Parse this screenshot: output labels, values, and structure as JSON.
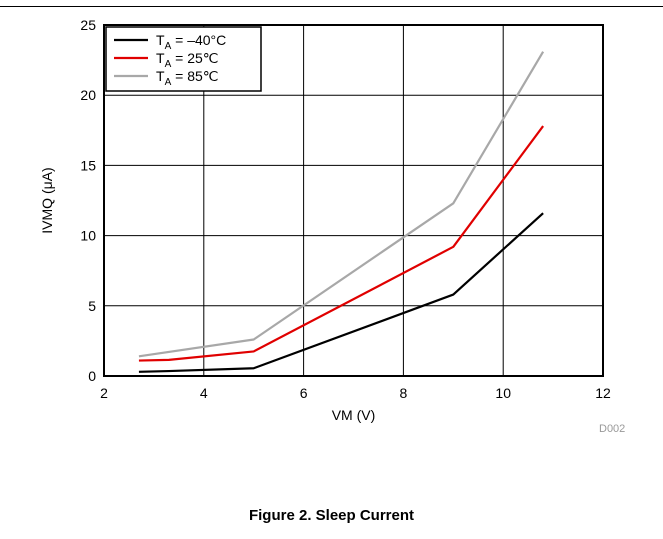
{
  "caption": "Figure 2. Sleep Current",
  "chart_data": {
    "type": "line",
    "xlabel": "VM (V)",
    "ylabel": "IVMQ (μA)",
    "xlim": [
      2,
      12
    ],
    "ylim": [
      0,
      25
    ],
    "xticks": [
      2,
      4,
      6,
      8,
      10,
      12
    ],
    "yticks": [
      0,
      5,
      10,
      15,
      20,
      25
    ],
    "grid": true,
    "legend": "top-left",
    "watermark": "D002",
    "series": [
      {
        "name_main": "T",
        "name_sub": "A",
        "name_rest": " = –40°C",
        "color": "#000000",
        "x": [
          2.7,
          3.3,
          5.0,
          9.0,
          10.8
        ],
        "y": [
          0.3,
          0.35,
          0.55,
          5.8,
          11.6
        ]
      },
      {
        "name_main": "T",
        "name_sub": "A",
        "name_rest": " = 25℃",
        "color": "#e00000",
        "x": [
          2.7,
          3.3,
          5.0,
          9.0,
          10.8
        ],
        "y": [
          1.1,
          1.15,
          1.75,
          9.2,
          17.8
        ]
      },
      {
        "name_main": "T",
        "name_sub": "A",
        "name_rest": " = 85℃",
        "color": "#a8a8a8",
        "x": [
          2.7,
          5.0,
          9.0,
          10.8
        ],
        "y": [
          1.4,
          2.6,
          12.3,
          23.1
        ]
      }
    ]
  }
}
